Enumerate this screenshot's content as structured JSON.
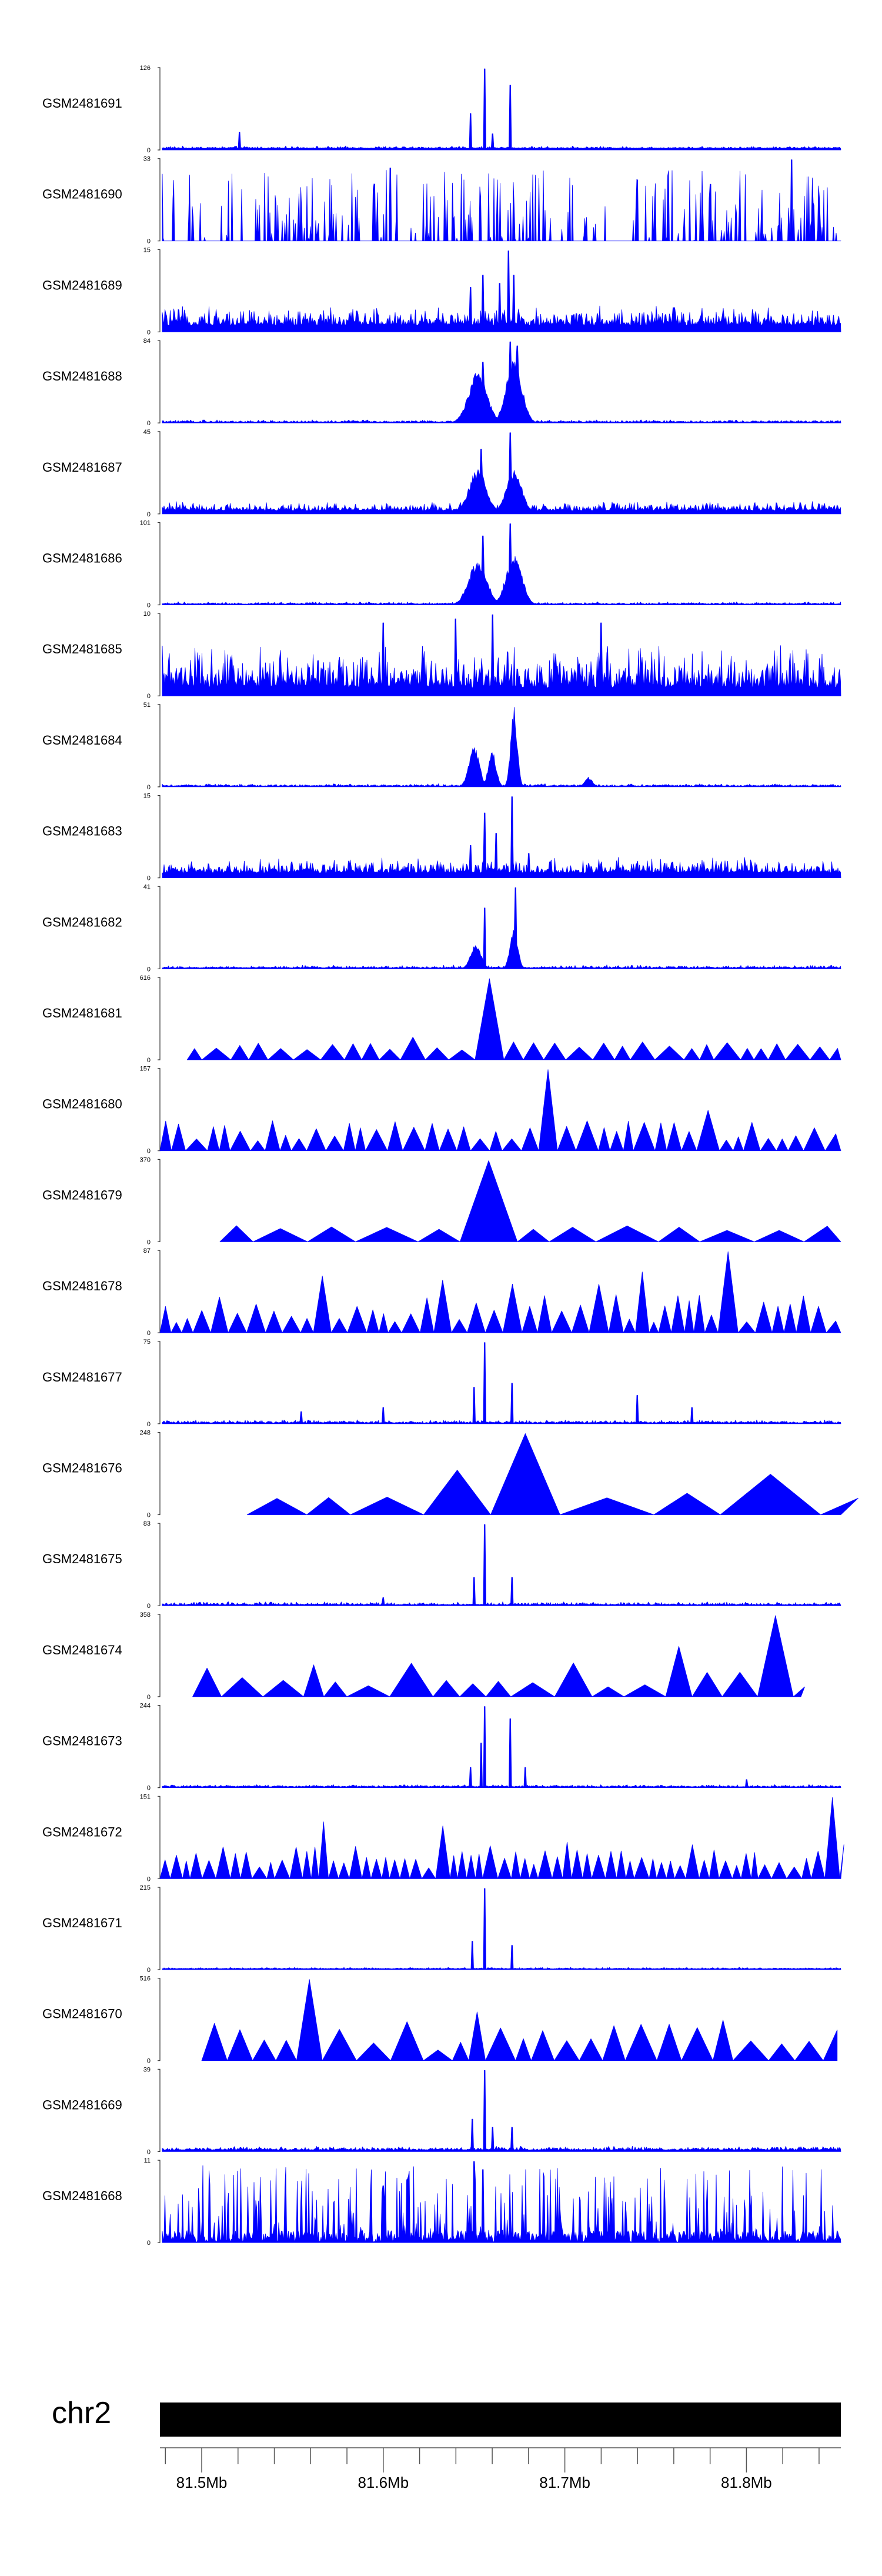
{
  "chart_data": {
    "type": "area",
    "color": "#0000ff",
    "chromosome": "chr2",
    "x_range_mb": [
      81.477,
      81.852
    ],
    "x_ticks": [
      {
        "value": 81.5,
        "label": "81.5Mb"
      },
      {
        "value": 81.6,
        "label": "81.6Mb"
      },
      {
        "value": 81.7,
        "label": "81.7Mb"
      },
      {
        "value": 81.8,
        "label": "81.8Mb"
      }
    ],
    "tracks": [
      {
        "name": "GSM2481691",
        "max": 126,
        "min": 0,
        "ymax_label": "126",
        "ymin_label": "0",
        "style": "dense",
        "base": 0.02,
        "noise": 0.03,
        "spikes": [
          [
            81.521,
            0.22
          ],
          [
            81.648,
            0.45
          ],
          [
            81.656,
            1.0
          ],
          [
            81.67,
            0.8
          ],
          [
            81.66,
            0.2
          ]
        ]
      },
      {
        "name": "GSM2481690",
        "max": 33,
        "min": 0,
        "ymax_label": "33",
        "ymin_label": "0",
        "style": "sparse",
        "base": 0.0,
        "noise": 0.55,
        "spikes": [
          [
            81.604,
            0.9
          ],
          [
            81.825,
            1.0
          ],
          [
            81.74,
            0.75
          ],
          [
            81.78,
            0.7
          ]
        ]
      },
      {
        "name": "GSM2481689",
        "max": 15,
        "min": 0,
        "ymax_label": "15",
        "ymin_label": "0",
        "style": "dense",
        "base": 0.08,
        "noise": 0.25,
        "spikes": [
          [
            81.648,
            0.55
          ],
          [
            81.655,
            0.7
          ],
          [
            81.664,
            0.6
          ],
          [
            81.669,
            1.0
          ],
          [
            81.672,
            0.7
          ],
          [
            81.76,
            0.3
          ]
        ]
      },
      {
        "name": "GSM2481688",
        "max": 84,
        "min": 0,
        "ymax_label": "84",
        "ymin_label": "0",
        "style": "dense",
        "base": 0.01,
        "noise": 0.03,
        "humps": [
          [
            81.652,
            0.007,
            0.65
          ],
          [
            81.672,
            0.006,
            0.8
          ]
        ],
        "spikes": [
          [
            81.655,
            0.75
          ],
          [
            81.67,
            1.0
          ],
          [
            81.674,
            0.95
          ]
        ]
      },
      {
        "name": "GSM2481687",
        "max": 45,
        "min": 0,
        "ymax_label": "45",
        "ymin_label": "0",
        "style": "dense",
        "base": 0.04,
        "noise": 0.12,
        "humps": [
          [
            81.652,
            0.007,
            0.55
          ],
          [
            81.672,
            0.006,
            0.55
          ]
        ],
        "spikes": [
          [
            81.654,
            0.8
          ],
          [
            81.67,
            1.0
          ]
        ]
      },
      {
        "name": "GSM2481686",
        "max": 101,
        "min": 0,
        "ymax_label": "101",
        "ymin_label": "0",
        "style": "dense",
        "base": 0.01,
        "noise": 0.03,
        "humps": [
          [
            81.652,
            0.007,
            0.55
          ],
          [
            81.672,
            0.006,
            0.65
          ]
        ],
        "spikes": [
          [
            81.655,
            0.85
          ],
          [
            81.67,
            1.0
          ]
        ]
      },
      {
        "name": "GSM2481685",
        "max": 10,
        "min": 0,
        "ymax_label": "10",
        "ymin_label": "0",
        "style": "dense",
        "base": 0.1,
        "noise": 0.55,
        "spikes": [
          [
            81.64,
            0.95
          ],
          [
            81.66,
            1.0
          ],
          [
            81.6,
            0.9
          ],
          [
            81.72,
            0.9
          ]
        ]
      },
      {
        "name": "GSM2481684",
        "max": 51,
        "min": 0,
        "ymax_label": "51",
        "ymin_label": "0",
        "style": "dense",
        "base": 0.01,
        "noise": 0.03,
        "humps": [
          [
            81.65,
            0.004,
            0.5
          ],
          [
            81.66,
            0.003,
            0.45
          ],
          [
            81.672,
            0.0025,
            1.0
          ],
          [
            81.713,
            0.003,
            0.12
          ]
        ],
        "spikes": []
      },
      {
        "name": "GSM2481683",
        "max": 15,
        "min": 0,
        "ymax_label": "15",
        "ymin_label": "0",
        "style": "dense",
        "base": 0.06,
        "noise": 0.2,
        "spikes": [
          [
            81.648,
            0.4
          ],
          [
            81.656,
            0.8
          ],
          [
            81.662,
            0.55
          ],
          [
            81.671,
            1.0
          ],
          [
            81.68,
            0.3
          ]
        ]
      },
      {
        "name": "GSM2481682",
        "max": 41,
        "min": 0,
        "ymax_label": "41",
        "ymin_label": "0",
        "style": "dense",
        "base": 0.01,
        "noise": 0.04,
        "humps": [
          [
            81.651,
            0.004,
            0.3
          ],
          [
            81.672,
            0.003,
            0.5
          ]
        ],
        "spikes": [
          [
            81.656,
            0.75
          ],
          [
            81.673,
            1.0
          ]
        ]
      },
      {
        "name": "GSM2481681",
        "max": 616,
        "min": 0,
        "ymax_label": "616",
        "ymin_label": "0",
        "style": "tri",
        "width": 0.012,
        "base": 0.0,
        "noise": 0.1,
        "start": 81.492,
        "end": 81.852,
        "spikes": [
          [
            81.611,
            0.28
          ],
          [
            81.656,
            1.0
          ],
          [
            81.675,
            0.22
          ],
          [
            81.722,
            0.18
          ],
          [
            81.745,
            0.22
          ]
        ]
      },
      {
        "name": "GSM2481680",
        "max": 157,
        "min": 0,
        "ymax_label": "157",
        "ymin_label": "0",
        "style": "tri",
        "width": 0.009,
        "base": 0.0,
        "noise": 0.25,
        "start": 81.477,
        "end": 81.852,
        "spikes": [
          [
            81.686,
            1.0
          ],
          [
            81.691,
            0.55
          ],
          [
            81.703,
            0.3
          ],
          [
            81.742,
            0.35
          ],
          [
            81.775,
            0.5
          ],
          [
            81.8,
            0.35
          ]
        ]
      },
      {
        "name": "GSM2481679",
        "max": 370,
        "min": 0,
        "ymax_label": "370",
        "ymin_label": "0",
        "style": "tri",
        "width": 0.025,
        "base": 0.0,
        "noise": 0.1,
        "start": 81.51,
        "end": 81.852,
        "spikes": [
          [
            81.656,
            1.0
          ],
          [
            81.71,
            0.18
          ],
          [
            81.76,
            0.18
          ],
          [
            81.62,
            0.12
          ]
        ]
      },
      {
        "name": "GSM2481678",
        "max": 87,
        "min": 0,
        "ymax_label": "87",
        "ymin_label": "0",
        "style": "tri",
        "width": 0.008,
        "base": 0.0,
        "noise": 0.35,
        "start": 81.477,
        "end": 81.852,
        "spikes": [
          [
            81.562,
            0.7
          ],
          [
            81.635,
            0.65
          ],
          [
            81.676,
            0.6
          ],
          [
            81.72,
            0.6
          ],
          [
            81.74,
            0.75
          ],
          [
            81.79,
            1.0
          ]
        ]
      },
      {
        "name": "GSM2481677",
        "max": 75,
        "min": 0,
        "ymax_label": "75",
        "ymin_label": "0",
        "style": "dense",
        "base": 0.01,
        "noise": 0.04,
        "spikes": [
          [
            81.555,
            0.15
          ],
          [
            81.6,
            0.2
          ],
          [
            81.65,
            0.45
          ],
          [
            81.656,
            1.0
          ],
          [
            81.671,
            0.5
          ],
          [
            81.74,
            0.35
          ],
          [
            81.77,
            0.2
          ]
        ]
      },
      {
        "name": "GSM2481676",
        "max": 248,
        "min": 0,
        "ymax_label": "248",
        "ymin_label": "0",
        "style": "tri",
        "width": 0.04,
        "base": 0.0,
        "noise": 0.45,
        "start": 81.525,
        "end": 81.852,
        "spikes": [
          [
            81.648,
            0.5
          ],
          [
            81.655,
            0.55
          ],
          [
            81.662,
            0.5
          ],
          [
            81.676,
            0.55
          ],
          [
            81.685,
            1.0
          ]
        ]
      },
      {
        "name": "GSM2481675",
        "max": 83,
        "min": 0,
        "ymax_label": "83",
        "ymin_label": "0",
        "style": "dense",
        "base": 0.01,
        "noise": 0.04,
        "spikes": [
          [
            81.65,
            0.35
          ],
          [
            81.656,
            1.0
          ],
          [
            81.671,
            0.35
          ],
          [
            81.6,
            0.1
          ]
        ]
      },
      {
        "name": "GSM2481674",
        "max": 358,
        "min": 0,
        "ymax_label": "358",
        "ymin_label": "0",
        "style": "tri",
        "width": 0.018,
        "base": 0.0,
        "noise": 0.3,
        "start": 81.495,
        "end": 81.83,
        "spikes": [
          [
            81.764,
            0.62
          ],
          [
            81.812,
            1.0
          ],
          [
            81.78,
            0.3
          ]
        ]
      },
      {
        "name": "GSM2481673",
        "max": 244,
        "min": 0,
        "ymax_label": "244",
        "ymin_label": "0",
        "style": "dense",
        "base": 0.01,
        "noise": 0.03,
        "spikes": [
          [
            81.648,
            0.25
          ],
          [
            81.654,
            0.55
          ],
          [
            81.656,
            1.0
          ],
          [
            81.67,
            0.85
          ],
          [
            81.678,
            0.25
          ],
          [
            81.8,
            0.1
          ]
        ]
      },
      {
        "name": "GSM2481672",
        "max": 151,
        "min": 0,
        "ymax_label": "151",
        "ymin_label": "0",
        "style": "tri",
        "width": 0.006,
        "base": 0.0,
        "noise": 0.3,
        "start": 81.477,
        "end": 81.852,
        "spikes": [
          [
            81.565,
            0.7
          ],
          [
            81.63,
            0.65
          ],
          [
            81.7,
            0.45
          ],
          [
            81.851,
            1.0
          ]
        ]
      },
      {
        "name": "GSM2481671",
        "max": 215,
        "min": 0,
        "ymax_label": "215",
        "ymin_label": "0",
        "style": "dense",
        "base": 0.01,
        "noise": 0.02,
        "spikes": [
          [
            81.649,
            0.35
          ],
          [
            81.656,
            1.0
          ],
          [
            81.671,
            0.3
          ]
        ]
      },
      {
        "name": "GSM2481670",
        "max": 516,
        "min": 0,
        "ymax_label": "516",
        "ymin_label": "0",
        "style": "tri",
        "width": 0.014,
        "base": 0.0,
        "noise": 0.35,
        "start": 81.5,
        "end": 81.85,
        "spikes": [
          [
            81.565,
            1.0
          ],
          [
            81.605,
            0.48
          ],
          [
            81.62,
            0.4
          ],
          [
            81.656,
            0.6
          ],
          [
            81.672,
            0.38
          ],
          [
            81.79,
            0.5
          ]
        ]
      },
      {
        "name": "GSM2481669",
        "max": 39,
        "min": 0,
        "ymax_label": "39",
        "ymin_label": "0",
        "style": "dense",
        "base": 0.02,
        "noise": 0.05,
        "spikes": [
          [
            81.649,
            0.4
          ],
          [
            81.656,
            1.0
          ],
          [
            81.66,
            0.3
          ],
          [
            81.671,
            0.3
          ]
        ]
      },
      {
        "name": "GSM2481668",
        "max": 11,
        "min": 0,
        "ymax_label": "11",
        "ymin_label": "0",
        "style": "sparse",
        "base": 0.15,
        "noise": 0.5,
        "spikes": [
          [
            81.65,
            1.0
          ],
          [
            81.655,
            0.9
          ],
          [
            81.6,
            0.7
          ]
        ]
      }
    ]
  }
}
